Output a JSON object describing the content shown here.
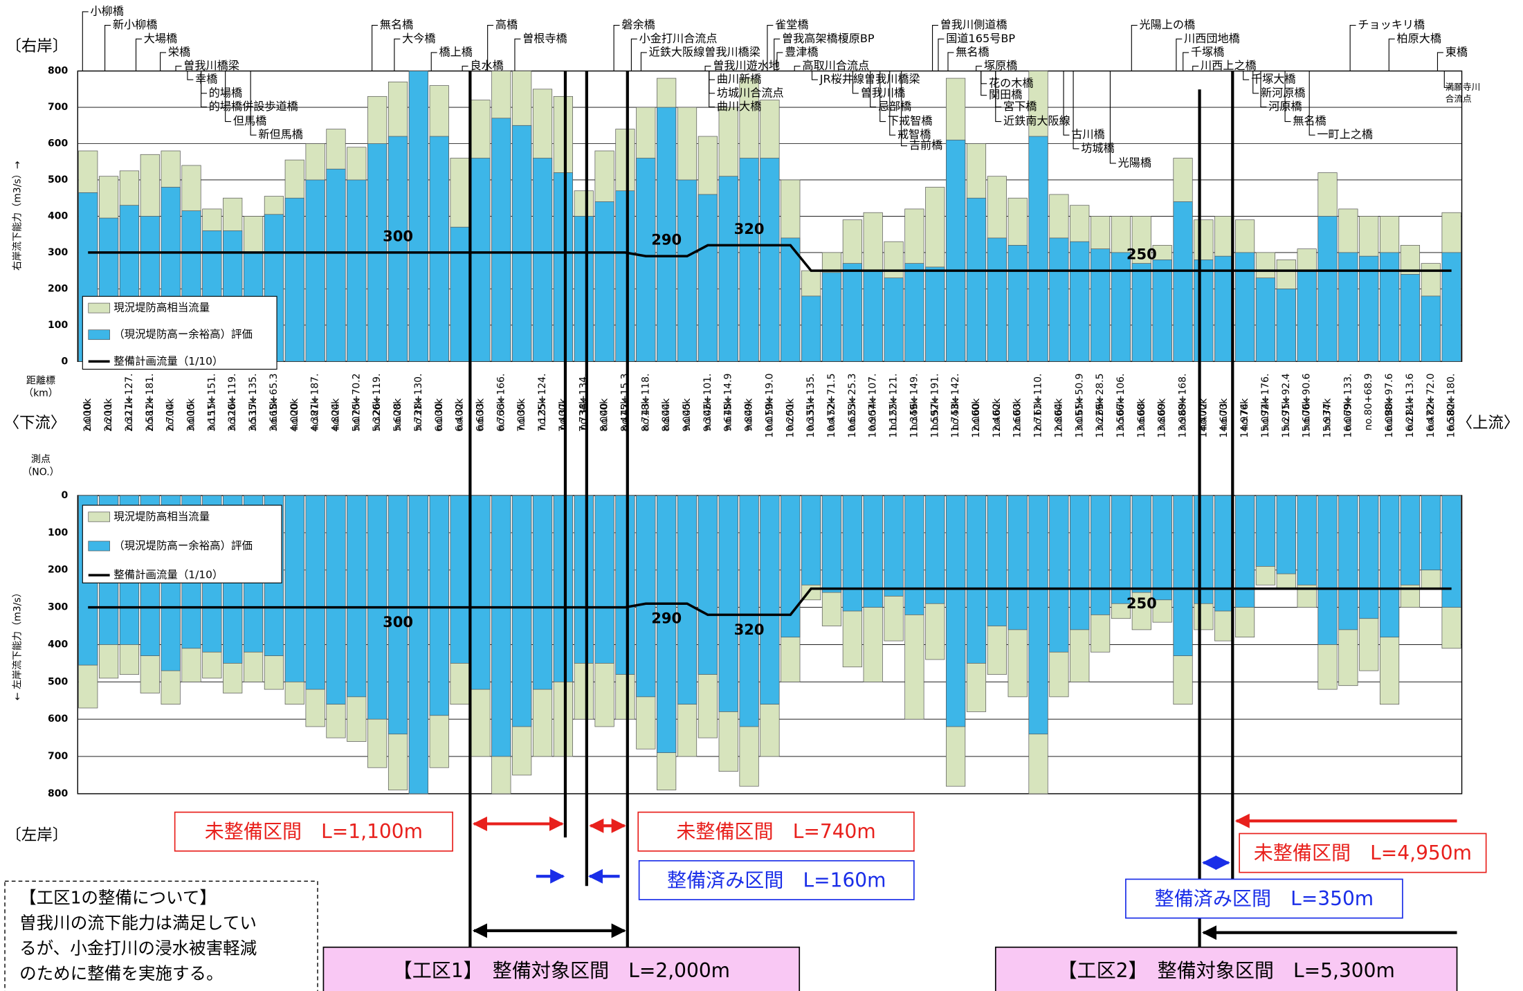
{
  "chart_data": [
    {
      "type": "bar",
      "ylabel": "右岸流下能力（m3/s）→",
      "xlabel": [
        "距離標",
        "（km）"
      ],
      "categories": [
        "2.000k",
        "2.200k",
        "2.327k",
        "2.581k",
        "2.700k",
        "3.000k",
        "3.151k",
        "3.320k",
        "3.535k",
        "3.665k",
        "4.000k",
        "4.387k",
        "4.800k",
        "5.070k",
        "5.320k",
        "5.600k",
        "5.731k",
        "6.000k",
        "6.400k",
        "6.600k",
        "6.766k",
        "7.000k",
        "7.125k",
        "7.400k",
        "7.734k",
        "8.000k",
        "8.415k",
        "8.718k",
        "8.800k",
        "9.000k",
        "9.302k",
        "9.615k",
        "9.800k",
        "10.019k",
        "10.200k",
        "10.335k",
        "10.472k",
        "10.625k",
        "10.907k",
        "11.122k",
        "11.349k",
        "11.592k",
        "11.743k",
        "12.000k",
        "12.400k",
        "12.600k",
        "12.711k",
        "12.800k",
        "13.051k",
        "13.229k",
        "13.506k",
        "13.600k",
        "13.800k",
        "13.988k",
        "14.400k",
        "14.600k",
        "14.976k",
        "15.092k",
        "15.291k",
        "15.600k",
        "15.934k",
        "16.069k",
        null,
        "16.098k",
        "16.214k",
        "16.472k",
        "16.580k"
      ],
      "series": [
        {
          "name": "現況堤防高相当流量",
          "color": "#d7e4bd",
          "values": [
            580,
            510,
            525,
            570,
            580,
            540,
            420,
            450,
            400,
            455,
            555,
            600,
            640,
            590,
            730,
            770,
            800,
            760,
            560,
            720,
            800,
            800,
            750,
            730,
            470,
            580,
            640,
            700,
            780,
            700,
            620,
            700,
            780,
            720,
            500,
            250,
            300,
            390,
            410,
            330,
            420,
            480,
            780,
            600,
            510,
            450,
            800,
            460,
            430,
            400,
            400,
            400,
            320,
            560,
            390,
            400,
            390,
            300,
            280,
            310,
            520,
            420,
            400,
            400,
            320,
            270,
            410
          ]
        },
        {
          "name": "（現況堤防高ー余裕高）評価",
          "color": "#3db6e8",
          "values": [
            465,
            395,
            430,
            400,
            480,
            415,
            360,
            360,
            300,
            405,
            450,
            500,
            530,
            500,
            600,
            620,
            800,
            620,
            370,
            560,
            670,
            650,
            560,
            520,
            400,
            440,
            470,
            560,
            700,
            500,
            460,
            510,
            560,
            560,
            340,
            180,
            245,
            270,
            250,
            230,
            270,
            260,
            610,
            450,
            340,
            320,
            620,
            340,
            330,
            310,
            300,
            270,
            280,
            440,
            280,
            290,
            300,
            230,
            200,
            250,
            400,
            300,
            290,
            300,
            240,
            180,
            300
          ]
        },
        {
          "name": "整備計画流量（1/10）",
          "type": "line",
          "color": "#000000",
          "values": [
            300,
            300,
            300,
            300,
            300,
            300,
            300,
            300,
            300,
            300,
            300,
            300,
            300,
            300,
            300,
            300,
            300,
            300,
            300,
            300,
            300,
            300,
            300,
            300,
            300,
            300,
            300,
            290,
            290,
            290,
            320,
            320,
            320,
            320,
            320,
            250,
            250,
            250,
            250,
            250,
            250,
            250,
            250,
            250,
            250,
            250,
            250,
            250,
            250,
            250,
            250,
            250,
            250,
            250,
            250,
            250,
            250,
            250,
            250,
            250,
            250,
            250,
            250,
            250,
            250,
            250,
            250
          ]
        }
      ],
      "ylim": [
        0,
        800
      ],
      "yticks": [
        0,
        100,
        200,
        300,
        400,
        500,
        600,
        700,
        800
      ],
      "grid": true
    },
    {
      "type": "bar",
      "ylabel": "← 左岸流下能力（m3/s）",
      "xlabel": [
        "測点",
        "（NO.）"
      ],
      "categories": [
        "no.10",
        "no.11",
        "no.11+127.",
        "no.12+181.",
        "no.14",
        "no.15",
        "no.15+151.",
        "no.16+119.",
        "no.17+135.",
        "no.18+65.3",
        "no.20",
        "no.21+187.",
        "no.24",
        "no.25+70.2",
        "no.26+119.",
        "no.28",
        "no.28+130.",
        "no.30",
        "no.32",
        "no.33",
        "no.33+166.",
        "no.35",
        "no.35+124.",
        "no.37",
        "no.38+134.",
        "no.40",
        "no.42+15.3",
        "no.43+118.",
        "no.44",
        "no.45",
        "no.46+101.",
        "no.48+14.9",
        "no.49",
        "no.50+19.0",
        "no.51",
        "no.51+135.",
        "no.52+71.5",
        "no.53+25.3",
        "no.54+107.",
        "no.55+121.",
        "no.56+149.",
        "no.57+191.",
        "no.58+142.",
        "no.60",
        "no.62",
        "no.63",
        "no.63+110.",
        "no.64",
        "no.65+50.9",
        "no.66+28.5",
        "no.67+106.",
        "no.68",
        "no.69",
        "no.69+168.",
        "no.72",
        "no.73",
        "no.74",
        "no.74+176.",
        "no.75+92.4",
        "no.76+90.6",
        "no.77",
        "no.79+133.",
        "no.80+68.9",
        "no.80+97.6",
        "no.81+13.6",
        "no.82+72.0",
        "no.82+180."
      ],
      "series": [
        {
          "name": "現況堤防高相当流量",
          "color": "#d7e4bd",
          "values": [
            570,
            490,
            480,
            530,
            560,
            500,
            490,
            530,
            500,
            520,
            560,
            620,
            650,
            660,
            730,
            790,
            800,
            730,
            560,
            700,
            800,
            750,
            700,
            700,
            600,
            620,
            600,
            680,
            790,
            700,
            650,
            740,
            780,
            700,
            500,
            280,
            350,
            460,
            500,
            390,
            600,
            440,
            780,
            580,
            480,
            540,
            800,
            540,
            500,
            420,
            330,
            360,
            340,
            560,
            360,
            390,
            380,
            240,
            250,
            300,
            520,
            510,
            470,
            560,
            300,
            250,
            410
          ]
        },
        {
          "name": "（現況堤防高ー余裕高）評価",
          "color": "#3db6e8",
          "values": [
            455,
            400,
            400,
            430,
            470,
            410,
            420,
            450,
            420,
            430,
            500,
            520,
            560,
            540,
            600,
            640,
            800,
            590,
            450,
            520,
            700,
            620,
            520,
            500,
            450,
            450,
            480,
            540,
            690,
            560,
            480,
            580,
            620,
            560,
            380,
            240,
            260,
            310,
            300,
            270,
            320,
            290,
            620,
            450,
            350,
            360,
            640,
            420,
            360,
            320,
            290,
            260,
            280,
            430,
            290,
            310,
            300,
            190,
            210,
            240,
            400,
            360,
            330,
            380,
            240,
            200,
            300
          ]
        },
        {
          "name": "整備計画流量（1/10）",
          "type": "line",
          "color": "#000000",
          "values": [
            300,
            300,
            300,
            300,
            300,
            300,
            300,
            300,
            300,
            300,
            300,
            300,
            300,
            300,
            300,
            300,
            300,
            300,
            300,
            300,
            300,
            300,
            300,
            300,
            300,
            300,
            300,
            290,
            290,
            290,
            320,
            320,
            320,
            320,
            320,
            250,
            250,
            250,
            250,
            250,
            250,
            250,
            250,
            250,
            250,
            250,
            250,
            250,
            250,
            250,
            250,
            250,
            250,
            250,
            250,
            250,
            250,
            250,
            250,
            250,
            250,
            250,
            250,
            250,
            250,
            250,
            250
          ]
        }
      ],
      "ylim": [
        0,
        800
      ],
      "yticks": [
        0,
        100,
        200,
        300,
        400,
        500,
        600,
        700,
        800
      ],
      "grid": true
    }
  ],
  "labels": {
    "right_bank": "〔右岸〕",
    "left_bank": "〔左岸〕",
    "downstream": "〈下流〉",
    "upstream": "〈上流〉"
  },
  "bridges": [
    "小柳橋",
    "新小柳橋",
    "大場橋",
    "栄橋",
    "曽我川橋梁",
    "幸橋",
    "的場橋",
    "的場橋併設歩道橋",
    "但馬橋",
    "新但馬橋",
    "無名橋",
    "大今橋",
    "橋上橋",
    "良水橋",
    "高橋",
    "曽根寺橋",
    "磐余橋",
    "小金打川合流点",
    "近鉄大阪線曽我川橋梁",
    "曽我川遊水地",
    "曲川新橋",
    "坊城川合流点",
    "曲川大橋",
    "雀堂橋",
    "曽我高架橋榎原BP",
    "豊津橋",
    "高取川合流点",
    "JR桜井線曽我川橋梁",
    "曽我川橋",
    "忌部橋",
    "下戒智橋",
    "戒智橋",
    "吉前橋",
    "曽我川側道橋",
    "国道165号BP",
    "無名橋",
    "塚原橋",
    "花の木橋",
    "関田橋",
    "宮下橋",
    "近鉄南大阪線",
    "古川橋",
    "坊城橋",
    "光陽橋",
    "光陽上の橋",
    "川西団地橋",
    "千塚橋",
    "川西上之橋",
    "千塚大橋",
    "新河原橋",
    "河原橋",
    "無名橋",
    "一町上之橋",
    "チョッキリ橋",
    "柏原大橋",
    "東橋",
    "満願寺川",
    "合流点"
  ],
  "sections": [
    "未整備区間　L=1,100m",
    "未整備区間　L=740m",
    "整備済み区間　L=160m",
    "【工区1】　整備対象区間　L=2,000m",
    "未整備区間　L=4,950m",
    "整備済み区間　L=350m",
    "【工区2】　整備対象区間　L=5,300m"
  ],
  "note": [
    "【工区1の整備について】",
    "曽我川の流下能力は満足してい",
    "るが、小金打川の浸水被害軽減",
    "のために整備を実施する。"
  ]
}
